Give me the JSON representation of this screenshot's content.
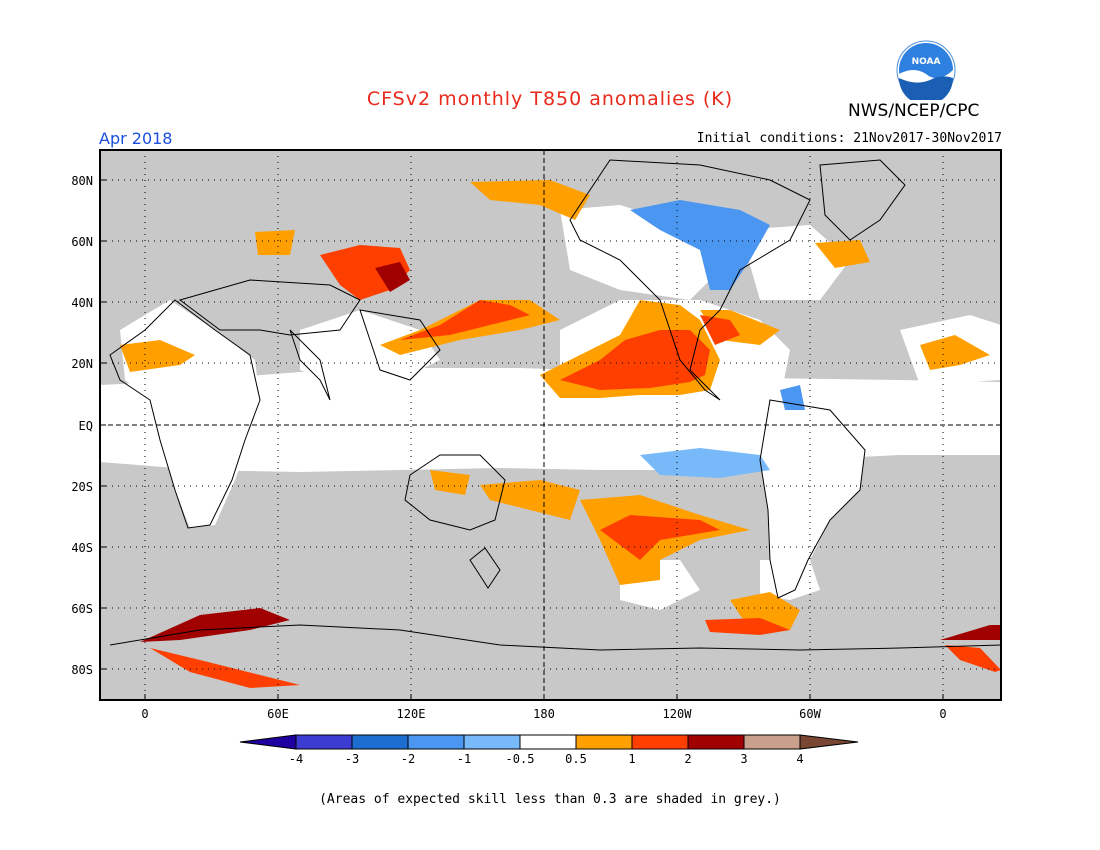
{
  "header": {
    "title": "CFSv2 monthly T850 anomalies (K)",
    "agency": "NWS/NCEP/CPC",
    "logo_text": "NOAA",
    "valid_month": "Apr 2018",
    "initial_conditions": "Initial conditions: 21Nov2017-30Nov2017"
  },
  "map": {
    "lat_labels": [
      "80N",
      "60N",
      "40N",
      "20N",
      "EQ",
      "20S",
      "40S",
      "60S",
      "80S"
    ],
    "lon_labels": [
      "0",
      "60E",
      "120E",
      "180",
      "120W",
      "60W",
      "0"
    ],
    "skill_mask_color": "#c8c8c8",
    "regions": [
      {
        "name": "east-pacific-positive-anomaly",
        "class": "1 to 2",
        "color": "#ff3f00"
      },
      {
        "name": "east-pacific-positive-margin",
        "class": "0.5 to 1",
        "color": "#ffa000"
      },
      {
        "name": "siberia-strong-anomaly",
        "class": "2 to 3",
        "color": "#a00000"
      },
      {
        "name": "canada-negative-anomaly",
        "class": "-1 to -2",
        "color": "#4b96f0"
      },
      {
        "name": "south-pacific-negative-anomaly",
        "class": "-0.5 to -1",
        "color": "#78b9fa"
      },
      {
        "name": "antarctic-strong-anomaly",
        "class": "2 to 3",
        "color": "#a00000"
      }
    ]
  },
  "colorbar": {
    "labels": [
      "-4",
      "-3",
      "-2",
      "-1",
      "-0.5",
      "0.5",
      "1",
      "2",
      "3",
      "4"
    ],
    "colors": [
      "#1e00a0",
      "#3c3cd2",
      "#1e6ed2",
      "#4b96f0",
      "#78b9fa",
      "#ffffff",
      "#ffa000",
      "#ff3f00",
      "#a00000",
      "#c8a08c",
      "#784632"
    ]
  },
  "footnote": "(Areas of expected skill less than 0.3 are shaded in grey.)"
}
